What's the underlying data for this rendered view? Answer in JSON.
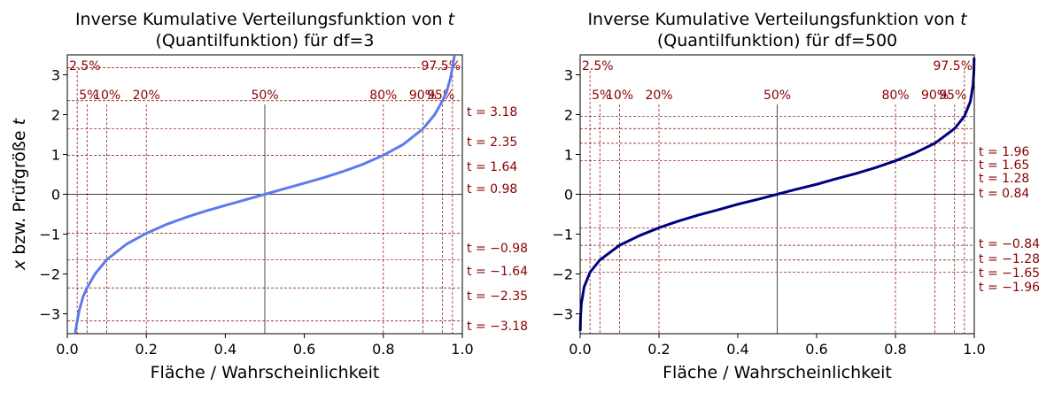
{
  "chart_data": [
    {
      "type": "line",
      "title_line1": "Inverse Kumulative Verteilungsfunktion von t",
      "title_line2": "(Quantilfunktion) für df=3",
      "xlabel": "Fläche / Wahrscheinlichkeit",
      "ylabel": "x bzw. Prüfgröße t",
      "df": 3,
      "xlim": [
        0,
        1
      ],
      "ylim": [
        -3.5,
        3.5
      ],
      "xticks": [
        "0.0",
        "0.2",
        "0.4",
        "0.6",
        "0.8",
        "1.0"
      ],
      "yticks": [
        "−3",
        "−2",
        "−1",
        "0",
        "1",
        "2",
        "3"
      ],
      "line_color": "#6079ec",
      "series": [
        {
          "x": [
            0.02,
            0.025,
            0.03,
            0.04,
            0.05,
            0.07,
            0.1,
            0.15,
            0.2,
            0.25,
            0.3,
            0.35,
            0.4,
            0.45,
            0.5,
            0.55,
            0.6,
            0.65,
            0.7,
            0.75,
            0.8,
            0.85,
            0.9,
            0.93,
            0.95,
            0.96,
            0.97,
            0.975,
            0.98
          ],
          "values": [
            -3.48,
            -3.18,
            -2.92,
            -2.57,
            -2.35,
            -2.0,
            -1.64,
            -1.25,
            -0.98,
            -0.76,
            -0.58,
            -0.42,
            -0.28,
            -0.14,
            0.0,
            0.14,
            0.28,
            0.42,
            0.58,
            0.76,
            0.98,
            1.25,
            1.64,
            2.0,
            2.35,
            2.57,
            2.92,
            3.18,
            3.48
          ]
        }
      ],
      "percent_labels": [
        "2.5%",
        "5%",
        "10%",
        "20%",
        "50%",
        "80%",
        "90%",
        "95%",
        "97.5%"
      ],
      "percent_values": [
        0.025,
        0.05,
        0.1,
        0.2,
        0.5,
        0.8,
        0.9,
        0.95,
        0.975
      ],
      "t_values": [
        3.18,
        2.35,
        1.64,
        0.98,
        -0.98,
        -1.64,
        -2.35,
        -3.18
      ],
      "t_labels": [
        "t = 3.18",
        "t = 2.35",
        "t = 1.64",
        "t = 0.98",
        "t = −0.98",
        "t = −1.64",
        "t = −2.35",
        "t = −3.18"
      ]
    },
    {
      "type": "line",
      "title_line1": "Inverse Kumulative Verteilungsfunktion von t",
      "title_line2": "(Quantilfunktion) für df=500",
      "xlabel": "Fläche / Wahrscheinlichkeit",
      "ylabel": "",
      "df": 500,
      "xlim": [
        0,
        1
      ],
      "ylim": [
        -3.5,
        3.5
      ],
      "xticks": [
        "0.0",
        "0.2",
        "0.4",
        "0.6",
        "0.8",
        "1.0"
      ],
      "yticks": [
        "−3",
        "−2",
        "−1",
        "0",
        "1",
        "2",
        "3"
      ],
      "line_color": "#000080",
      "series": [
        {
          "x": [
            0.0003,
            0.001,
            0.003,
            0.01,
            0.025,
            0.05,
            0.1,
            0.15,
            0.2,
            0.25,
            0.3,
            0.35,
            0.4,
            0.45,
            0.5,
            0.55,
            0.6,
            0.65,
            0.7,
            0.75,
            0.8,
            0.85,
            0.9,
            0.95,
            0.975,
            0.99,
            0.997,
            0.999,
            0.9996
          ],
          "values": [
            -3.43,
            -3.1,
            -2.75,
            -2.33,
            -1.96,
            -1.65,
            -1.28,
            -1.04,
            -0.84,
            -0.67,
            -0.52,
            -0.39,
            -0.25,
            -0.13,
            0.0,
            0.13,
            0.25,
            0.39,
            0.52,
            0.67,
            0.84,
            1.04,
            1.28,
            1.65,
            1.96,
            2.33,
            2.75,
            3.1,
            3.43
          ]
        }
      ],
      "percent_labels": [
        "2.5%",
        "5%",
        "10%",
        "20%",
        "50%",
        "80%",
        "90%",
        "95%",
        "97.5%"
      ],
      "percent_values": [
        0.025,
        0.05,
        0.1,
        0.2,
        0.5,
        0.8,
        0.9,
        0.95,
        0.975
      ],
      "t_values": [
        1.96,
        1.65,
        1.28,
        0.84,
        -0.84,
        -1.28,
        -1.65,
        -1.96
      ],
      "t_labels": [
        "t = 1.96",
        "t = 1.65",
        "t = 1.28",
        "t = 0.84",
        "t = −0.84",
        "t = −1.28",
        "t = −1.65",
        "t = −1.96"
      ]
    }
  ]
}
